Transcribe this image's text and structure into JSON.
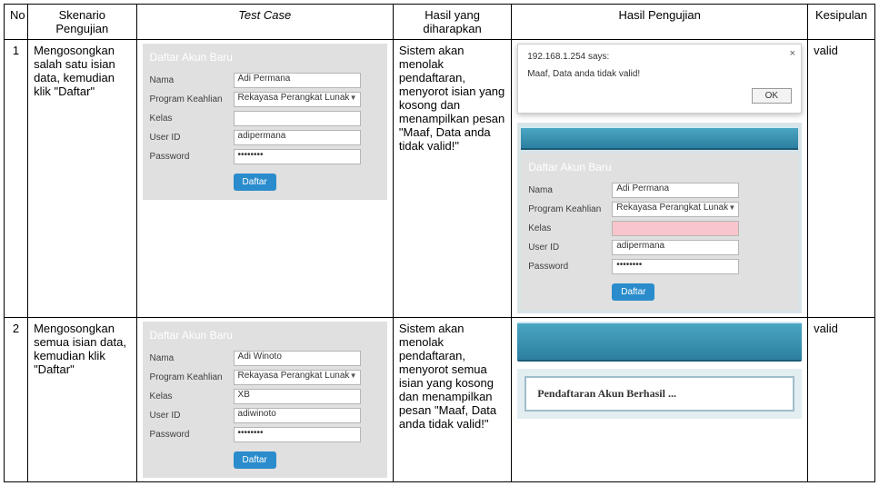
{
  "headers": {
    "no": "No",
    "skenario": "Skenario Pengujian",
    "testcase": "Test Case",
    "hasil_diharapkan": "Hasil yang diharapkan",
    "hasil_pengujian": "Hasil Pengujian",
    "kesimpulan": "Kesipulan"
  },
  "rows": [
    {
      "no": "1",
      "skenario": "Mengosongkan salah satu isian data, kemudian klik \"Daftar\"",
      "hasil_diharapkan": "Sistem akan menolak pendaftaran, menyorot isian yang kosong dan menampilkan pesan \"Maaf, Data anda tidak valid!\"",
      "kesimpulan": "valid",
      "form": {
        "title": "Daftar Akun Baru",
        "labels": {
          "nama": "Nama",
          "prog": "Program Keahlian",
          "kelas": "Kelas",
          "uid": "User ID",
          "pwd": "Password"
        },
        "vals": {
          "nama": "Adi Permana",
          "prog": "Rekayasa Perangkat Lunak",
          "kelas": "",
          "uid": "adipermana",
          "pwd": "••••••••"
        },
        "button": "Daftar"
      },
      "alert": {
        "title": "192.168.1.254 says:",
        "msg": "Maaf, Data anda tidak valid!",
        "ok": "OK"
      },
      "form2": {
        "title": "Daftar Akun Baru",
        "labels": {
          "nama": "Nama",
          "prog": "Program Keahlian",
          "kelas": "Kelas",
          "uid": "User ID",
          "pwd": "Password"
        },
        "vals": {
          "nama": "Adi Permana",
          "prog": "Rekayasa Perangkat Lunak",
          "kelas": "",
          "uid": "adipermana",
          "pwd": "••••••••"
        },
        "button": "Daftar"
      }
    },
    {
      "no": "2",
      "skenario": "Mengosongkan semua isian data, kemudian klik \"Daftar\"",
      "hasil_diharapkan": "Sistem akan menolak pendaftaran, menyorot semua isian yang kosong dan menampilkan pesan \"Maaf, Data anda tidak valid!\"",
      "kesimpulan": "valid",
      "form": {
        "title": "Daftar Akun Baru",
        "labels": {
          "nama": "Nama",
          "prog": "Program Keahlian",
          "kelas": "Kelas",
          "uid": "User ID",
          "pwd": "Password"
        },
        "vals": {
          "nama": "Adi Winoto",
          "prog": "Rekayasa Perangkat Lunak",
          "kelas": "XB",
          "uid": "adiwinoto",
          "pwd": "••••••••"
        },
        "button": "Daftar"
      },
      "success": "Pendaftaran Akun Berhasil ..."
    }
  ]
}
